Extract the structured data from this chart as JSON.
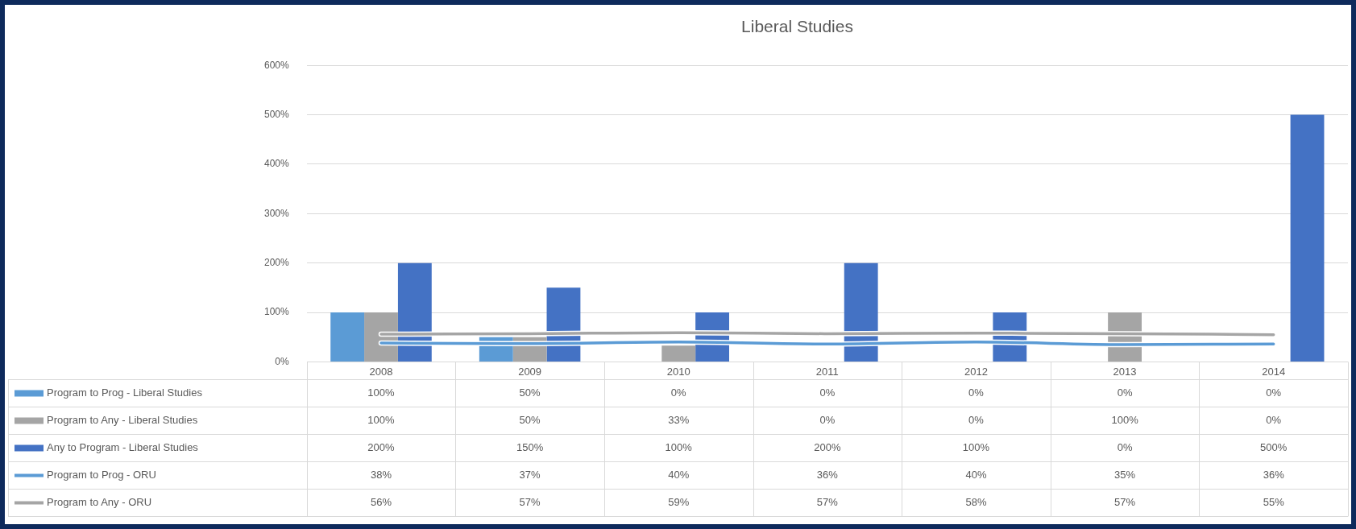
{
  "chart_data": {
    "type": "bar",
    "title": "Liberal Studies",
    "categories": [
      "2008",
      "2009",
      "2010",
      "2011",
      "2012",
      "2013",
      "2014"
    ],
    "series": [
      {
        "name": "Program to Prog - Liberal Studies",
        "color": "#5b9bd5",
        "values": [
          100,
          50,
          0,
          0,
          0,
          0,
          0
        ],
        "value_labels": [
          "100%",
          "50%",
          "0%",
          "0%",
          "0%",
          "0%",
          "0%"
        ]
      },
      {
        "name": "Program to Any - Liberal Studies",
        "color": "#a5a5a5",
        "values": [
          100,
          50,
          33,
          0,
          0,
          100,
          0
        ],
        "value_labels": [
          "100%",
          "50%",
          "33%",
          "0%",
          "0%",
          "100%",
          "0%"
        ]
      },
      {
        "name": "Any to Program - Liberal Studies",
        "color": "#4472c4",
        "values": [
          200,
          150,
          100,
          200,
          100,
          0,
          500
        ],
        "value_labels": [
          "200%",
          "150%",
          "100%",
          "200%",
          "100%",
          "0%",
          "500%"
        ]
      },
      {
        "name": "Program to Prog - ORU",
        "type": "line",
        "color": "#5b9bd5",
        "values": [
          38,
          37,
          40,
          36,
          40,
          35,
          36
        ],
        "value_labels": [
          "38%",
          "37%",
          "40%",
          "36%",
          "40%",
          "35%",
          "36%"
        ]
      },
      {
        "name": "Program to Any - ORU",
        "type": "line",
        "color": "#a5a5a5",
        "values": [
          56,
          57,
          59,
          57,
          58,
          57,
          55
        ],
        "value_labels": [
          "56%",
          "57%",
          "59%",
          "57%",
          "58%",
          "57%",
          "55%"
        ]
      }
    ],
    "ylim": [
      0,
      600
    ],
    "yticks": [
      {
        "value": 0,
        "label": "0%"
      },
      {
        "value": 100,
        "label": "100%"
      },
      {
        "value": 200,
        "label": "200%"
      },
      {
        "value": 300,
        "label": "300%"
      },
      {
        "value": 400,
        "label": "400%"
      },
      {
        "value": 500,
        "label": "500%"
      },
      {
        "value": 600,
        "label": "600%"
      }
    ],
    "grid": "y",
    "legend": "bottom",
    "marker": "none",
    "line_style": "solid"
  }
}
